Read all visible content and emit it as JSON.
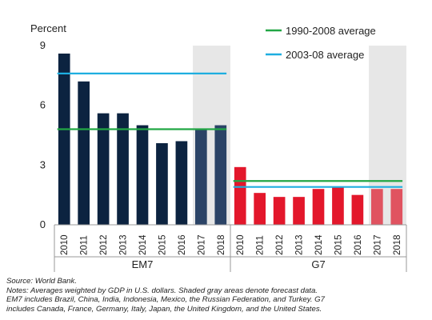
{
  "chart_data": {
    "type": "bar",
    "ylabel": "Percent",
    "ylim": [
      0,
      9
    ],
    "yticks": [
      0,
      3,
      6,
      9
    ],
    "grid": false,
    "legend_placement": "top-right",
    "panels": [
      {
        "name": "EM7",
        "categories": [
          "2010",
          "2011",
          "2012",
          "2013",
          "2014",
          "2015",
          "2016",
          "2017",
          "2018"
        ],
        "values": [
          8.6,
          7.2,
          5.6,
          5.6,
          5.0,
          4.1,
          4.2,
          4.8,
          5.0
        ],
        "forecast_categories": [
          "2017",
          "2018"
        ],
        "averages": {
          "1990-2008 average": 4.8,
          "2003-08 average": 7.6
        }
      },
      {
        "name": "G7",
        "categories": [
          "2010",
          "2011",
          "2012",
          "2013",
          "2014",
          "2015",
          "2016",
          "2017",
          "2018"
        ],
        "values": [
          2.9,
          1.6,
          1.4,
          1.4,
          1.8,
          1.9,
          1.5,
          1.8,
          1.8
        ],
        "forecast_categories": [
          "2017",
          "2018"
        ],
        "averages": {
          "1990-2008 average": 2.2,
          "2003-08 average": 1.9
        }
      }
    ],
    "legend": [
      {
        "label": "1990-2008 average",
        "color": "#22a645"
      },
      {
        "label": "2003-08 average",
        "color": "#1eaee0"
      }
    ],
    "colors": {
      "em7_actual": "#0c2340",
      "em7_forecast": "#2b4366",
      "g7_actual": "#e3172b",
      "g7_forecast": "#e05360",
      "forecast_shade": "#e7e7e7"
    }
  },
  "notes": {
    "source": "Source: World Bank.",
    "lines": [
      "Notes: Averages weighted by GDP in U.S. dollars. Shaded gray areas denote forecast data.",
      "EM7 includes Brazil, China, India, Indonesia, Mexico, the Russian Federation, and Turkey. G7",
      "includes Canada, France, Germany, Italy, Japan, the United Kingdom, and the United States."
    ]
  }
}
